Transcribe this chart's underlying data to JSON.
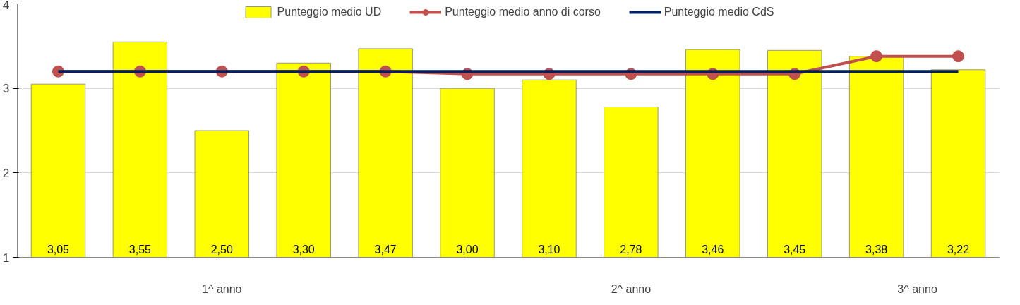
{
  "chart_data": {
    "type": "bar",
    "categories": [
      null,
      null,
      null,
      null,
      null,
      null,
      null,
      null,
      null,
      null,
      null,
      null
    ],
    "series": [
      {
        "name": "Punteggio medio UD",
        "color": "#ffff00",
        "values": [
          3.05,
          3.55,
          2.5,
          3.3,
          3.47,
          3.0,
          3.1,
          2.78,
          3.46,
          3.45,
          3.38,
          3.22
        ],
        "value_labels": [
          "3,05",
          "3,55",
          "2,50",
          "3,30",
          "3,47",
          "3,00",
          "3,10",
          "2,78",
          "3,46",
          "3,45",
          "3,38",
          "3,22"
        ]
      },
      {
        "name": "Punteggio medio anno di corso",
        "type": "line",
        "color": "#c0504d",
        "marker": "circle",
        "values": [
          3.2,
          3.2,
          3.2,
          3.2,
          3.2,
          3.17,
          3.17,
          3.17,
          3.17,
          3.17,
          3.38,
          3.38
        ]
      },
      {
        "name": "Punteggio medio CdS",
        "type": "line",
        "color": "#002060",
        "marker": "none",
        "values": [
          3.2,
          3.2,
          3.2,
          3.2,
          3.2,
          3.2,
          3.2,
          3.2,
          3.2,
          3.2,
          3.2,
          3.2
        ]
      }
    ],
    "ylim": [
      1,
      4
    ],
    "yticks": [
      1,
      2,
      3,
      4
    ],
    "grid": "y",
    "legend": "top",
    "annotations": [
      "1^ anno",
      "2^ anno",
      "3^ anno"
    ]
  }
}
